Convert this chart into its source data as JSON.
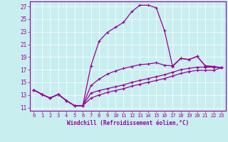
{
  "xlabel": "Windchill (Refroidissement éolien,°C)",
  "bg_color": "#c8eef0",
  "line_color": "#990099",
  "xlim": [
    -0.5,
    23.5
  ],
  "ylim": [
    10.5,
    27.8
  ],
  "xticks": [
    0,
    1,
    2,
    3,
    4,
    5,
    6,
    7,
    8,
    9,
    10,
    11,
    12,
    13,
    14,
    15,
    16,
    17,
    18,
    19,
    20,
    21,
    22,
    23
  ],
  "yticks": [
    11,
    13,
    15,
    17,
    19,
    21,
    23,
    25,
    27
  ],
  "line1_x": [
    0,
    1,
    2,
    3,
    4,
    5,
    6,
    7,
    8,
    9,
    10,
    11,
    12,
    13,
    14,
    15,
    16,
    17,
    18,
    19,
    20,
    21,
    22,
    23
  ],
  "line1_y": [
    13.8,
    13.1,
    12.5,
    13.1,
    12.1,
    11.3,
    11.3,
    17.6,
    21.5,
    22.9,
    23.7,
    24.5,
    26.2,
    27.2,
    27.2,
    26.8,
    23.2,
    17.5,
    18.8,
    18.6,
    19.1,
    17.6,
    17.5,
    17.3
  ],
  "line2_x": [
    0,
    1,
    2,
    3,
    4,
    5,
    6,
    7,
    8,
    9,
    10,
    11,
    12,
    13,
    14,
    15,
    16,
    17,
    18,
    19,
    20,
    21,
    22,
    23
  ],
  "line2_y": [
    13.8,
    13.1,
    12.5,
    13.1,
    12.1,
    11.3,
    11.3,
    13.3,
    13.7,
    14.0,
    14.3,
    14.6,
    15.0,
    15.3,
    15.6,
    15.9,
    16.2,
    16.6,
    17.0,
    17.2,
    17.4,
    17.4,
    17.4,
    17.3
  ],
  "line3_x": [
    0,
    1,
    2,
    3,
    4,
    5,
    6,
    7,
    8,
    9,
    10,
    11,
    12,
    13,
    14,
    15,
    16,
    17,
    18,
    19,
    20,
    21,
    22,
    23
  ],
  "line3_y": [
    13.8,
    13.1,
    12.5,
    13.1,
    12.1,
    11.3,
    11.3,
    12.5,
    13.0,
    13.4,
    13.7,
    14.0,
    14.4,
    14.7,
    15.0,
    15.3,
    15.6,
    16.0,
    16.4,
    16.7,
    16.9,
    16.9,
    16.9,
    17.3
  ],
  "line4_x": [
    0,
    1,
    2,
    3,
    4,
    5,
    6,
    7,
    8,
    9,
    10,
    11,
    12,
    13,
    14,
    15,
    16,
    17,
    18,
    19,
    20,
    21,
    22,
    23
  ],
  "line4_y": [
    13.8,
    13.1,
    12.5,
    13.1,
    12.1,
    11.3,
    11.3,
    14.5,
    15.5,
    16.3,
    16.8,
    17.2,
    17.5,
    17.8,
    17.9,
    18.1,
    17.7,
    17.6,
    18.8,
    18.6,
    19.1,
    17.6,
    17.5,
    17.3
  ],
  "xtick_fontsize": 5,
  "ytick_fontsize": 5.5,
  "xlabel_fontsize": 5.5
}
